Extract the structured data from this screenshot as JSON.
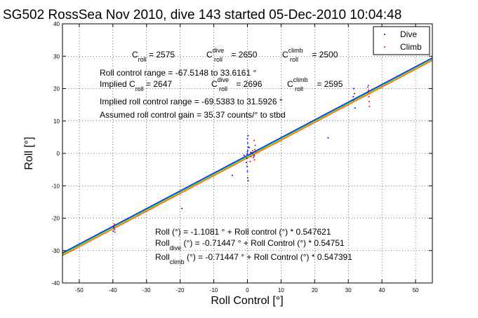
{
  "chart_data": {
    "type": "scatter",
    "title": "SG502 RossSea Nov 2010, dive 143 started 05-Dec-2010 10:04:48",
    "xlabel": "Roll Control [°]",
    "ylabel": "Roll [°]",
    "xlim": [
      -55,
      55
    ],
    "ylim": [
      -40,
      40
    ],
    "xticks": [
      -50,
      -40,
      -30,
      -20,
      -10,
      0,
      10,
      20,
      30,
      40,
      50
    ],
    "yticks": [
      -40,
      -30,
      -20,
      -10,
      0,
      10,
      20,
      30,
      40
    ],
    "grid": true,
    "legend": {
      "position": "top-right",
      "entries": [
        {
          "name": "Dive",
          "color": "#0000ff"
        },
        {
          "name": "Climb",
          "color": "#ff0000"
        }
      ]
    },
    "series": [
      {
        "name": "Dive",
        "color": "#0000ff",
        "points": [
          [
            -39.8,
            -22.4
          ],
          [
            -39.5,
            -23.5
          ],
          [
            -39.9,
            -24.0
          ],
          [
            -39.7,
            -22.9
          ],
          [
            -19.5,
            -17.0
          ],
          [
            0,
            0.5
          ],
          [
            0.1,
            1.0
          ],
          [
            -0.1,
            -0.2
          ],
          [
            0.2,
            2.0
          ],
          [
            -0.2,
            -1.5
          ],
          [
            0.1,
            3.2
          ],
          [
            0,
            4.5
          ],
          [
            0.2,
            5.5
          ],
          [
            -0.1,
            -4.0
          ],
          [
            0,
            -5.5
          ],
          [
            0.1,
            -7.5
          ],
          [
            0.2,
            -8.4
          ],
          [
            -0.3,
            -2.8
          ],
          [
            0.5,
            1.8
          ],
          [
            1.5,
            0.0
          ],
          [
            -1.0,
            -0.6
          ],
          [
            -4.5,
            -6.8
          ],
          [
            31.5,
            17.5
          ],
          [
            31.6,
            20.0
          ],
          [
            31.4,
            16.5
          ],
          [
            32.0,
            14.0
          ],
          [
            31.8,
            18.5
          ],
          [
            24.0,
            4.8
          ],
          [
            2.0,
            -0.8
          ],
          [
            1.0,
            0.3
          ]
        ]
      },
      {
        "name": "Climb",
        "color": "#ff0000",
        "points": [
          [
            -39.6,
            -21.8
          ],
          [
            -39.8,
            -23.0
          ],
          [
            -39.4,
            -24.3
          ],
          [
            2.0,
            -0.5
          ],
          [
            2.2,
            1.2
          ],
          [
            1.8,
            -1.3
          ],
          [
            2.5,
            0.4
          ],
          [
            2.1,
            -2.0
          ],
          [
            1.5,
            0.8
          ],
          [
            2.3,
            2.5
          ],
          [
            1.0,
            -1.0
          ],
          [
            0.8,
            -2.5
          ],
          [
            2.0,
            4.0
          ],
          [
            36.0,
            19.5
          ],
          [
            36.1,
            17.5
          ],
          [
            35.8,
            20.5
          ],
          [
            36.2,
            16.0
          ],
          [
            35.9,
            18.8
          ],
          [
            36.0,
            21.0
          ],
          [
            36.3,
            14.5
          ]
        ]
      }
    ],
    "fit_lines": [
      {
        "color": "#ffa500",
        "intercept": -1.2,
        "slope": 0.5476
      },
      {
        "color": "#ff4500",
        "intercept": -1.45,
        "slope": 0.5476
      },
      {
        "color": "#00aa00",
        "intercept": -0.9,
        "slope": 0.5476
      },
      {
        "color": "#00c0c0",
        "intercept": -0.71447,
        "slope": 0.54751
      },
      {
        "color": "#0000ff",
        "intercept": -0.55,
        "slope": 0.5474
      }
    ]
  },
  "annotations": {
    "c_roll_label": "C",
    "c_roll_sub": "roll",
    "c_roll_value": " = 2575",
    "c_roll_dive_label": "C",
    "c_roll_dive_sup": "dive",
    "c_roll_dive_sub": "roll",
    "c_roll_dive_value": " = 2650",
    "c_roll_climb_label": "C",
    "c_roll_climb_sup": "climb",
    "c_roll_climb_sub": "roll",
    "c_roll_climb_value": " = 2500",
    "range_line": "Roll control range = -67.5148 to 33.6161 °",
    "implied_label": "Implied C",
    "implied_sub": "roll",
    "implied_value": " = 2647",
    "implied_dive_label": "C",
    "implied_dive_sup": "dive",
    "implied_dive_sub": "roll",
    "implied_dive_value": " = 2696",
    "implied_climb_label": "C",
    "implied_climb_sup": "climb",
    "implied_climb_sub": "roll",
    "implied_climb_value": " = 2595",
    "implied_range_line": "Implied roll control range = -69.5383 to 31.5926 °",
    "gain_line": "Assumed roll control gain = 35.37 counts/° to stbd",
    "eq1": "Roll (°) = -1.1081 ° + Roll control (°) * 0.547621",
    "eq2_pre": "Roll",
    "eq2_sub": "dive",
    "eq2_post": " (°) = -0.71447 ° + Roll Control (°) * 0.54751",
    "eq3_pre": "Roll",
    "eq3_sub": "climb",
    "eq3_post": " (°) = -0.71447 ° + Roll Control (°) * 0.547391"
  }
}
